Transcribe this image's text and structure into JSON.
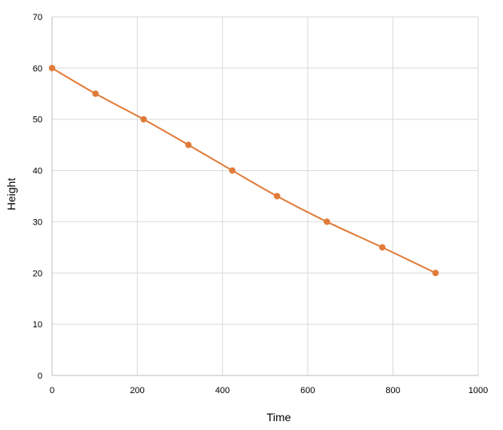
{
  "chart_data": {
    "type": "scatter",
    "title": "",
    "xlabel": "Time",
    "ylabel": "Height",
    "xlim": [
      0,
      1000
    ],
    "ylim": [
      0,
      70
    ],
    "x_ticks": [
      0,
      200,
      400,
      600,
      800,
      1000
    ],
    "y_ticks": [
      0,
      10,
      20,
      30,
      40,
      50,
      60,
      70
    ],
    "grid": true,
    "legend": "none",
    "series": [
      {
        "color": "#e07b39",
        "marker": "circle",
        "line": "smooth",
        "points": [
          {
            "x": 0,
            "y": 60
          },
          {
            "x": 102,
            "y": 55
          },
          {
            "x": 215,
            "y": 50
          },
          {
            "x": 320,
            "y": 45
          },
          {
            "x": 423,
            "y": 40
          },
          {
            "x": 528,
            "y": 35
          },
          {
            "x": 645,
            "y": 30
          },
          {
            "x": 775,
            "y": 25
          },
          {
            "x": 900,
            "y": 20
          }
        ]
      }
    ]
  }
}
